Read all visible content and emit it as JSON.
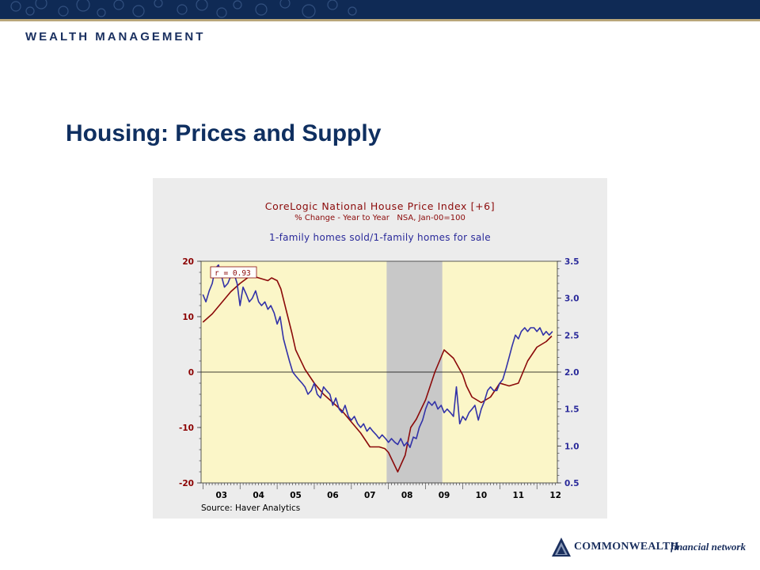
{
  "header": {
    "brand": "WEALTH MANAGEMENT",
    "banner_color": "#0f2a55",
    "rule_color": "#b9a77a"
  },
  "slide": {
    "title": "Housing: Prices and Supply"
  },
  "footer": {
    "logo_name": "COMMONWEALTH",
    "logo_tagline": "financial network",
    "logo_icon": "mountain-peaks-icon"
  },
  "chart_data": {
    "type": "line",
    "title": "CoreLogic National House Price Index [+6]",
    "subtitle": "% Change - Year to Year   NSA, Jan-00=100",
    "title2": "1-family homes sold/1-family homes for sale",
    "source": "Source: Haver Analytics",
    "correlation_label": "r = 0.93",
    "x_tick_labels": [
      "03",
      "04",
      "05",
      "06",
      "07",
      "08",
      "09",
      "10",
      "11",
      "12"
    ],
    "x_range": [
      2002.95,
      2012.55
    ],
    "left_axis": {
      "ylim": [
        -20,
        20
      ],
      "ticks": [
        -20,
        -10,
        0,
        10,
        20
      ],
      "tick_labels": [
        "-20",
        "-10",
        "0",
        "10",
        "20"
      ],
      "color": "#8b0000"
    },
    "right_axis": {
      "ylim": [
        0.5,
        3.5
      ],
      "ticks": [
        0.5,
        1.0,
        1.5,
        2.0,
        2.5,
        3.0,
        3.5
      ],
      "tick_labels": [
        "0.5",
        "1.0",
        "1.5",
        "2.0",
        "2.5",
        "3.0",
        "3.5"
      ],
      "color": "#2a2a9a"
    },
    "recession_shading": {
      "start": 2007.95,
      "end": 2009.45,
      "color": "#c8c8c8"
    },
    "plot_bg": "#fbf6c8",
    "zero_line": true,
    "series": [
      {
        "name": "CoreLogic National House Price Index [+6]",
        "axis": "left",
        "color": "#8b0a0a",
        "x": [
          2003.0,
          2003.25,
          2003.5,
          2003.75,
          2004.0,
          2004.1,
          2004.2,
          2004.25,
          2004.5,
          2004.75,
          2004.85,
          2005.0,
          2005.1,
          2005.25,
          2005.4,
          2005.5,
          2005.75,
          2006.0,
          2006.25,
          2006.5,
          2006.75,
          2007.0,
          2007.25,
          2007.5,
          2007.75,
          2007.9,
          2008.0,
          2008.25,
          2008.45,
          2008.6,
          2008.75,
          2009.0,
          2009.25,
          2009.5,
          2009.75,
          2010.0,
          2010.1,
          2010.25,
          2010.5,
          2010.75,
          2010.9,
          2011.0,
          2011.25,
          2011.5,
          2011.75,
          2012.0,
          2012.25,
          2012.4
        ],
        "values": [
          9,
          10.5,
          12.5,
          14.5,
          16,
          16.5,
          17,
          17.5,
          17,
          16.5,
          17,
          16.5,
          15,
          11,
          7,
          4,
          0.5,
          -2,
          -4,
          -5.5,
          -7,
          -9,
          -11,
          -13.5,
          -13.5,
          -13.8,
          -14.5,
          -18,
          -15,
          -10,
          -8.5,
          -5,
          0,
          4,
          2.5,
          -0.5,
          -2.5,
          -4.5,
          -5.5,
          -4.5,
          -3,
          -2,
          -2.5,
          -2,
          2,
          4.5,
          5.5,
          6.5
        ]
      },
      {
        "name": "1-family homes sold/1-family homes for sale",
        "axis": "right",
        "color": "#3232a8",
        "x": [
          2003.0,
          2003.08,
          2003.17,
          2003.25,
          2003.33,
          2003.42,
          2003.5,
          2003.58,
          2003.67,
          2003.75,
          2003.83,
          2003.92,
          2004.0,
          2004.08,
          2004.17,
          2004.25,
          2004.33,
          2004.42,
          2004.5,
          2004.58,
          2004.67,
          2004.75,
          2004.83,
          2004.92,
          2005.0,
          2005.08,
          2005.17,
          2005.25,
          2005.33,
          2005.42,
          2005.5,
          2005.58,
          2005.67,
          2005.75,
          2005.83,
          2005.92,
          2006.0,
          2006.08,
          2006.17,
          2006.25,
          2006.33,
          2006.42,
          2006.5,
          2006.58,
          2006.67,
          2006.75,
          2006.83,
          2006.92,
          2007.0,
          2007.08,
          2007.17,
          2007.25,
          2007.33,
          2007.42,
          2007.5,
          2007.58,
          2007.67,
          2007.75,
          2007.83,
          2007.92,
          2008.0,
          2008.08,
          2008.17,
          2008.25,
          2008.33,
          2008.42,
          2008.5,
          2008.58,
          2008.67,
          2008.75,
          2008.83,
          2008.92,
          2009.0,
          2009.08,
          2009.17,
          2009.25,
          2009.33,
          2009.42,
          2009.5,
          2009.58,
          2009.67,
          2009.75,
          2009.83,
          2009.92,
          2010.0,
          2010.08,
          2010.17,
          2010.25,
          2010.33,
          2010.42,
          2010.5,
          2010.58,
          2010.67,
          2010.75,
          2010.83,
          2010.92,
          2011.0,
          2011.08,
          2011.17,
          2011.25,
          2011.33,
          2011.42,
          2011.5,
          2011.58,
          2011.67,
          2011.75,
          2011.83,
          2011.92,
          2012.0,
          2012.08,
          2012.17,
          2012.25,
          2012.33,
          2012.42
        ],
        "values": [
          3.05,
          2.95,
          3.1,
          3.2,
          3.4,
          3.45,
          3.3,
          3.15,
          3.2,
          3.3,
          3.35,
          3.2,
          2.9,
          3.15,
          3.05,
          2.95,
          3.0,
          3.1,
          2.95,
          2.9,
          2.95,
          2.85,
          2.9,
          2.8,
          2.65,
          2.75,
          2.45,
          2.3,
          2.15,
          2.0,
          1.95,
          1.9,
          1.85,
          1.8,
          1.7,
          1.75,
          1.85,
          1.7,
          1.65,
          1.8,
          1.75,
          1.7,
          1.55,
          1.65,
          1.5,
          1.45,
          1.55,
          1.4,
          1.35,
          1.4,
          1.3,
          1.25,
          1.3,
          1.2,
          1.25,
          1.2,
          1.15,
          1.1,
          1.15,
          1.1,
          1.05,
          1.1,
          1.05,
          1.02,
          1.1,
          1.0,
          1.05,
          0.98,
          1.12,
          1.1,
          1.25,
          1.35,
          1.5,
          1.6,
          1.55,
          1.6,
          1.5,
          1.55,
          1.45,
          1.5,
          1.45,
          1.4,
          1.8,
          1.3,
          1.4,
          1.35,
          1.45,
          1.5,
          1.55,
          1.35,
          1.5,
          1.6,
          1.75,
          1.8,
          1.75,
          1.75,
          1.85,
          1.9,
          2.05,
          2.2,
          2.35,
          2.5,
          2.45,
          2.55,
          2.6,
          2.55,
          2.6,
          2.6,
          2.55,
          2.6,
          2.5,
          2.55,
          2.5,
          2.55
        ]
      }
    ]
  }
}
